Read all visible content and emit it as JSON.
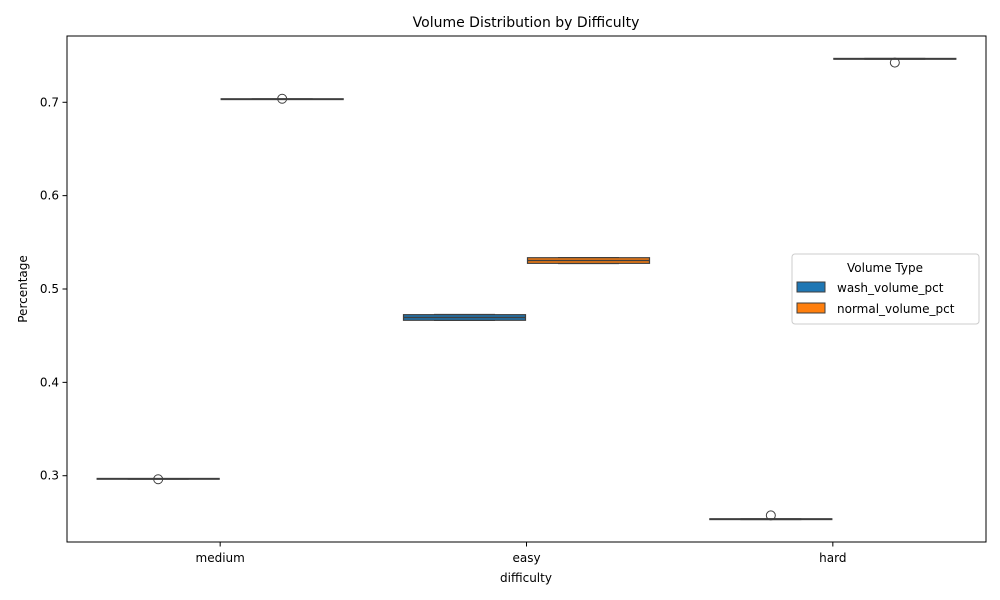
{
  "chart_data": {
    "type": "box",
    "title": "Volume Distribution by Difficulty",
    "xlabel": "difficulty",
    "ylabel": "Percentage",
    "categories": [
      "medium",
      "easy",
      "hard"
    ],
    "ylim": [
      0.229,
      0.771
    ],
    "yticks": [
      0.3,
      0.4,
      0.5,
      0.6,
      0.7
    ],
    "ytick_labels": [
      "0.3",
      "0.4",
      "0.5",
      "0.6",
      "0.7"
    ],
    "grid": false,
    "legend": {
      "title": "Volume Type",
      "placement": "center-right"
    },
    "series": [
      {
        "name": "wash_volume_pct",
        "color": "#1f77b4",
        "boxes": [
          {
            "q1": 0.2965,
            "median": 0.2967,
            "q3": 0.2968,
            "whisker_low": 0.2965,
            "whisker_high": 0.2968,
            "outliers": [
              0.2962
            ]
          },
          {
            "q1": 0.4665,
            "median": 0.4695,
            "q3": 0.4725,
            "whisker_low": 0.4665,
            "whisker_high": 0.4725,
            "outliers": []
          },
          {
            "q1": 0.2532,
            "median": 0.2535,
            "q3": 0.2537,
            "whisker_low": 0.2532,
            "whisker_high": 0.2537,
            "outliers": [
              0.2575
            ]
          }
        ]
      },
      {
        "name": "normal_volume_pct",
        "color": "#ff7f0e",
        "boxes": [
          {
            "q1": 0.7032,
            "median": 0.7033,
            "q3": 0.7035,
            "whisker_low": 0.7032,
            "whisker_high": 0.7035,
            "outliers": [
              0.7038
            ]
          },
          {
            "q1": 0.5275,
            "median": 0.5305,
            "q3": 0.5335,
            "whisker_low": 0.5275,
            "whisker_high": 0.5335,
            "outliers": []
          },
          {
            "q1": 0.7463,
            "median": 0.7465,
            "q3": 0.7468,
            "whisker_low": 0.7463,
            "whisker_high": 0.7468,
            "outliers": [
              0.7425
            ]
          }
        ]
      }
    ]
  }
}
